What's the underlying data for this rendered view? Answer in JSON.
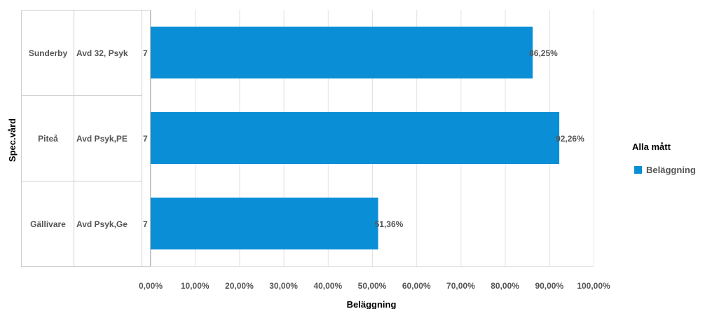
{
  "chart_data": {
    "type": "bar",
    "orientation": "horizontal",
    "title": "",
    "xlabel": "Beläggning",
    "ylabel": "Spec.vård",
    "xlim": [
      0,
      100
    ],
    "x_ticks": [
      "0,00%",
      "10,00%",
      "20,00%",
      "30,00%",
      "40,00%",
      "50,00%",
      "60,00%",
      "70,00%",
      "80,00%",
      "90,00%",
      "100,00%"
    ],
    "grid": true,
    "rows": [
      {
        "site": "Sunderby",
        "unit": "Avd 32, Psyk",
        "beds": "7",
        "value": 86.25,
        "label": "86,25%"
      },
      {
        "site": "Piteå",
        "unit": "Avd Psyk,PE",
        "beds": "7",
        "value": 92.26,
        "label": "92,26%"
      },
      {
        "site": "Gällivare",
        "unit": "Avd Psyk,Ge",
        "beds": "7",
        "value": 51.36,
        "label": "51,36%"
      }
    ],
    "series": [
      {
        "name": "Beläggning",
        "color": "#0a8fd6"
      }
    ],
    "legend": {
      "title": "Alla mått",
      "position": "right"
    }
  }
}
